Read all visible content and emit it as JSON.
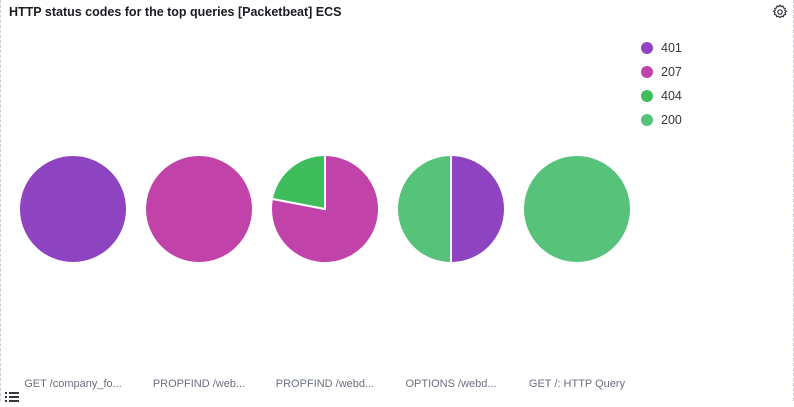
{
  "panel": {
    "title": "HTTP status codes for the top queries [Packetbeat] ECS"
  },
  "icons": {
    "settings": "gear-icon",
    "legend_toggle": "list-icon"
  },
  "legend": [
    {
      "label": "401",
      "color": "#8e44c0"
    },
    {
      "label": "207",
      "color": "#c142a8"
    },
    {
      "label": "404",
      "color": "#3fbd5c"
    },
    {
      "label": "200",
      "color": "#57c27a"
    }
  ],
  "chart_data": {
    "type": "pie",
    "legend_position": "top-right",
    "pies": [
      {
        "label": "GET /company_fo...",
        "slices": [
          {
            "name": "401",
            "value": 1
          }
        ]
      },
      {
        "label": "PROPFIND /web...",
        "slices": [
          {
            "name": "207",
            "value": 1
          }
        ]
      },
      {
        "label": "PROPFIND /webd...",
        "slices": [
          {
            "name": "207",
            "value": 0.78
          },
          {
            "name": "404",
            "value": 0.22
          }
        ]
      },
      {
        "label": "OPTIONS /webd...",
        "slices": [
          {
            "name": "401",
            "value": 0.5
          },
          {
            "name": "200",
            "value": 0.5
          }
        ]
      },
      {
        "label": "GET /: HTTP Query",
        "slices": [
          {
            "name": "200",
            "value": 1
          }
        ]
      }
    ]
  }
}
